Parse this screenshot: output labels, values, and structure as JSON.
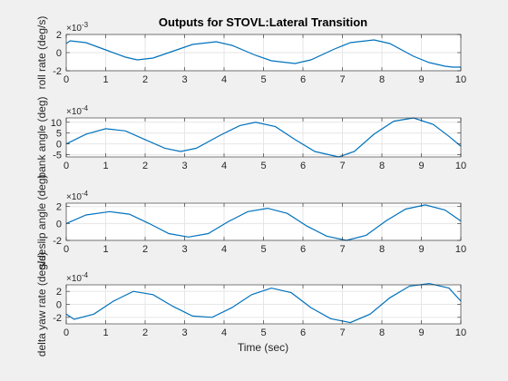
{
  "chart_data": {
    "type": "line",
    "title": "Outputs for STOVL:Lateral Transition",
    "xlabel": "Time (sec)",
    "xlim": [
      0,
      10
    ],
    "xticks": [
      "0",
      "1",
      "2",
      "3",
      "4",
      "5",
      "6",
      "7",
      "8",
      "9",
      "10"
    ],
    "grid": true,
    "line_color": "#0072bd",
    "axes_bg": "#ffffff",
    "figure_bg": "#f0f0f0",
    "subplots": [
      {
        "ylabel": "roll rate (deg/s)",
        "exponent_label": "×10",
        "exponent_power": "-3",
        "ylim": [
          -2,
          2
        ],
        "yticks": [
          "-2",
          "0",
          "2"
        ],
        "series": [
          {
            "x": [
              0,
              0.1,
              0.5,
              1.0,
              1.5,
              1.8,
              2.2,
              2.8,
              3.2,
              3.8,
              4.2,
              4.8,
              5.2,
              5.8,
              6.2,
              6.8,
              7.2,
              7.8,
              8.2,
              8.8,
              9.2,
              9.6,
              9.8,
              10.0
            ],
            "y": [
              1.0,
              1.3,
              1.1,
              0.3,
              -0.5,
              -0.8,
              -0.6,
              0.3,
              0.9,
              1.2,
              0.8,
              -0.3,
              -0.9,
              -1.2,
              -0.8,
              0.4,
              1.1,
              1.4,
              1.0,
              -0.4,
              -1.1,
              -1.5,
              -1.6,
              -1.6
            ]
          }
        ]
      },
      {
        "ylabel": "bank angle (deg)",
        "exponent_label": "×10",
        "exponent_power": "-4",
        "ylim": [
          -6,
          12
        ],
        "yticks": [
          "-5",
          "0",
          "5",
          "10"
        ],
        "series": [
          {
            "x": [
              0,
              0.5,
              1.0,
              1.5,
              2.0,
              2.5,
              2.9,
              3.3,
              3.9,
              4.4,
              4.8,
              5.3,
              5.8,
              6.3,
              6.9,
              7.3,
              7.8,
              8.3,
              8.8,
              9.3,
              9.7,
              10.0
            ],
            "y": [
              0.0,
              4.5,
              7.0,
              6.0,
              2.0,
              -2.0,
              -3.5,
              -2.0,
              4.0,
              8.5,
              10.0,
              8.0,
              2.0,
              -3.5,
              -6.0,
              -3.5,
              4.5,
              10.5,
              12.0,
              9.0,
              3.5,
              -1.0
            ]
          }
        ]
      },
      {
        "ylabel": "sideslip angle (deg)",
        "exponent_label": "×10",
        "exponent_power": "-4",
        "ylim": [
          -2,
          2.4
        ],
        "yticks": [
          "-2",
          "0",
          "2"
        ],
        "series": [
          {
            "x": [
              0,
              0.5,
              1.1,
              1.6,
              2.1,
              2.6,
              3.1,
              3.6,
              4.1,
              4.6,
              5.1,
              5.6,
              6.1,
              6.6,
              7.1,
              7.6,
              8.1,
              8.6,
              9.1,
              9.6,
              10.0
            ],
            "y": [
              0.0,
              1.0,
              1.4,
              1.1,
              0.0,
              -1.2,
              -1.6,
              -1.2,
              0.2,
              1.4,
              1.8,
              1.2,
              -0.3,
              -1.5,
              -2.0,
              -1.4,
              0.3,
              1.7,
              2.2,
              1.6,
              0.3
            ]
          }
        ]
      },
      {
        "ylabel": "delta yaw rate (deg/s)",
        "exponent_label": "×10",
        "exponent_power": "-4",
        "ylim": [
          -3,
          3
        ],
        "yticks": [
          "-2",
          "0",
          "2"
        ],
        "series": [
          {
            "x": [
              0,
              0.2,
              0.7,
              1.2,
              1.7,
              2.2,
              2.7,
              3.2,
              3.7,
              4.2,
              4.7,
              5.2,
              5.7,
              6.2,
              6.7,
              7.2,
              7.7,
              8.2,
              8.7,
              9.2,
              9.7,
              10.0
            ],
            "y": [
              -1.5,
              -2.3,
              -1.5,
              0.5,
              2.0,
              1.5,
              -0.3,
              -1.8,
              -2.0,
              -0.5,
              1.5,
              2.5,
              1.8,
              -0.5,
              -2.2,
              -2.8,
              -1.5,
              1.0,
              2.8,
              3.2,
              2.5,
              0.5
            ]
          }
        ]
      }
    ]
  }
}
